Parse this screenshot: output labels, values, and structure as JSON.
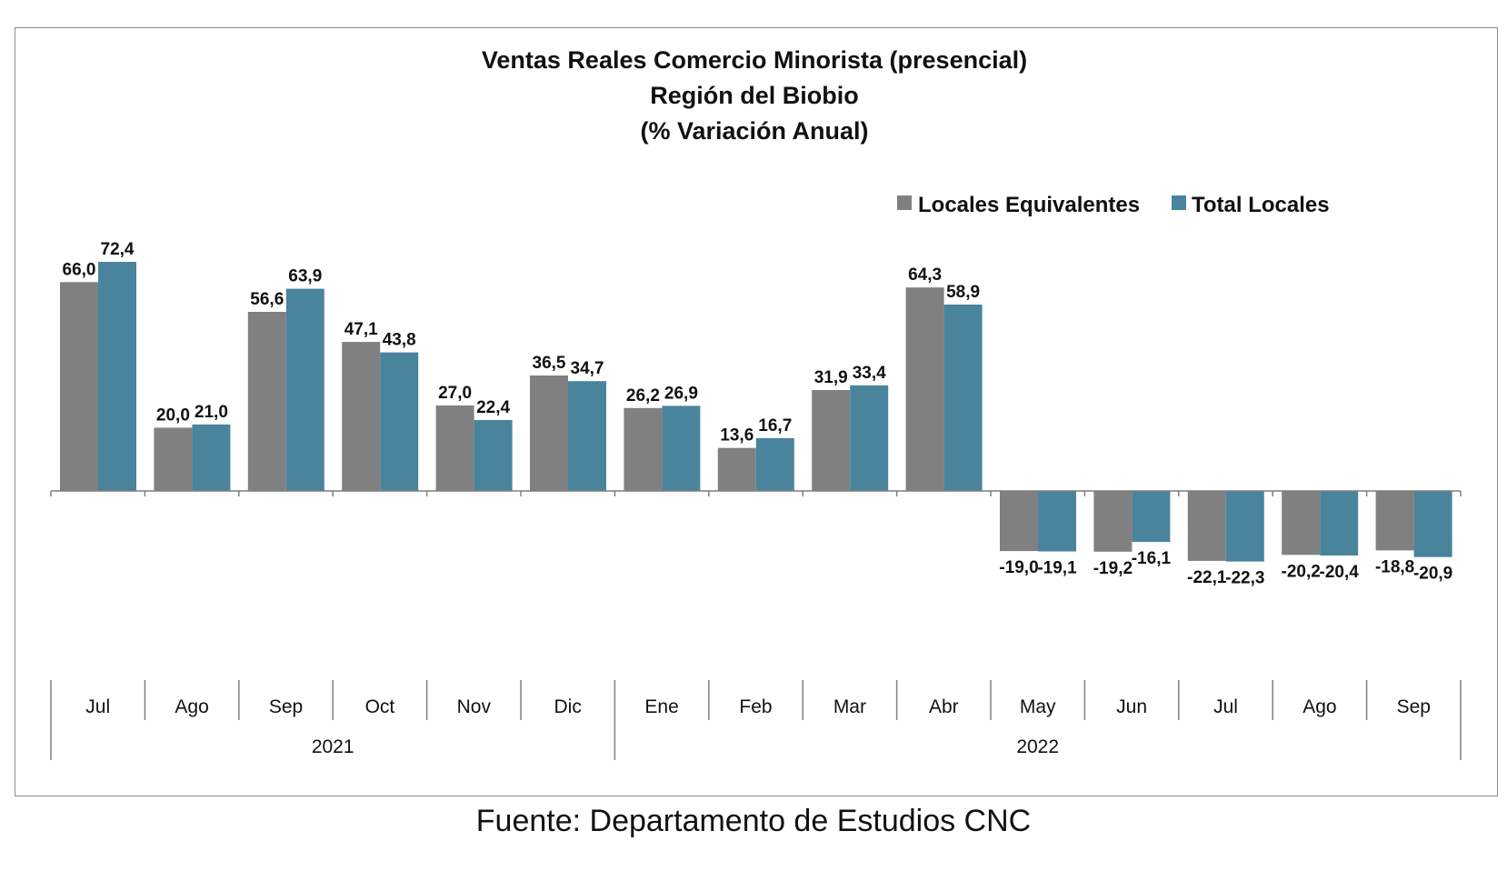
{
  "chart_data": {
    "type": "bar",
    "title": [
      "Ventas Reales Comercio Minorista (presencial)",
      "Región del Biobio",
      "(% Variación Anual)"
    ],
    "categories": [
      "Jul",
      "Ago",
      "Sep",
      "Oct",
      "Nov",
      "Dic",
      "Ene",
      "Feb",
      "Mar",
      "Abr",
      "May",
      "Jun",
      "Jul",
      "Ago",
      "Sep"
    ],
    "groups": [
      {
        "label": "2021",
        "count": 6
      },
      {
        "label": "2022",
        "count": 9
      }
    ],
    "series": [
      {
        "name": "Locales Equivalentes",
        "color": "#808080",
        "values": [
          66.0,
          20.0,
          56.6,
          47.1,
          27.0,
          36.5,
          26.2,
          13.6,
          31.9,
          64.3,
          -19.0,
          -19.2,
          -22.1,
          -20.2,
          -18.8
        ],
        "labels": [
          "66,0",
          "20,0",
          "56,6",
          "47,1",
          "27,0",
          "36,5",
          "26,2",
          "13,6",
          "31,9",
          "64,3",
          "-19,0",
          "-19,2",
          "-22,1",
          "-20,2",
          "-18,8"
        ]
      },
      {
        "name": "Total Locales",
        "color": "#4a849c",
        "values": [
          72.4,
          21.0,
          63.9,
          43.8,
          22.4,
          34.7,
          26.9,
          16.7,
          33.4,
          58.9,
          -19.1,
          -16.1,
          -22.3,
          -20.4,
          -20.9
        ],
        "labels": [
          "72,4",
          "21,0",
          "63,9",
          "43,8",
          "22,4",
          "34,7",
          "26,9",
          "16,7",
          "33,4",
          "58,9",
          "-19,1",
          "-16,1",
          "-22,3",
          "-20,4",
          "-20,9"
        ]
      }
    ],
    "legend_position": "top-right",
    "grid": false
  },
  "source": "Fuente: Departamento de Estudios CNC"
}
